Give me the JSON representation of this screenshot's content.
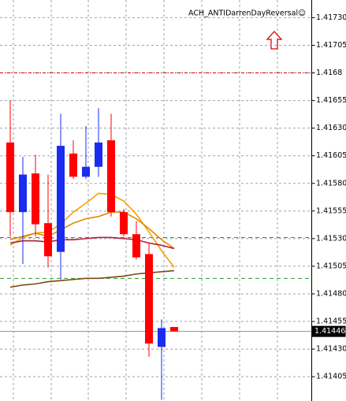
{
  "chart_data": {
    "type": "candlestick",
    "indicator_label": "ACH_ANTIDarrenDayReversal☺",
    "categories": [
      null,
      null,
      null,
      null,
      null,
      null,
      null,
      null,
      null,
      null,
      null,
      null,
      null,
      null
    ],
    "open": [
      1.41617,
      1.41554,
      1.41589,
      1.41544,
      1.41518,
      1.41607,
      1.41586,
      1.41595,
      1.41619,
      1.41554,
      1.41534,
      1.41516,
      1.41432,
      1.4145
    ],
    "high": [
      1.41655,
      1.41604,
      1.41606,
      1.41588,
      1.41643,
      1.41619,
      1.41632,
      1.41648,
      1.41643,
      1.41557,
      1.41546,
      1.41526,
      1.41457,
      1.4145
    ],
    "low": [
      1.41532,
      1.41507,
      1.41532,
      1.41504,
      1.41493,
      1.41584,
      1.41584,
      1.41586,
      1.4155,
      1.41532,
      1.41511,
      1.41423,
      1.41384,
      1.41446
    ],
    "close": [
      1.41554,
      1.41588,
      1.41543,
      1.41514,
      1.41614,
      1.41586,
      1.41595,
      1.41617,
      1.41554,
      1.41534,
      1.41513,
      1.41435,
      1.41449,
      1.41446
    ],
    "up_color": "#1a2cf0",
    "down_color": "#ff0000",
    "series": [
      {
        "color": "#f5a000",
        "values": [
          1.41524,
          1.41531,
          1.41535,
          1.41536,
          1.41543,
          1.41554,
          1.41562,
          1.41571,
          1.4157,
          1.41564,
          1.41552,
          1.41536,
          1.41519,
          1.41504
        ]
      },
      {
        "color": "#e08a00",
        "values": [
          1.41529,
          1.41532,
          1.41535,
          1.41532,
          1.41538,
          1.41544,
          1.41548,
          1.4155,
          1.41554,
          1.41554,
          1.41548,
          1.41539,
          1.41529,
          1.41521
        ]
      },
      {
        "color": "#b0203a",
        "values": [
          1.41526,
          1.41528,
          1.41528,
          1.41527,
          1.41529,
          1.41529,
          1.4153,
          1.41531,
          1.41531,
          1.4153,
          1.41529,
          1.41526,
          1.41524,
          1.41521
        ]
      },
      {
        "color": "#7a4a10",
        "values": [
          1.41486,
          1.41488,
          1.41489,
          1.41491,
          1.41492,
          1.41493,
          1.41494,
          1.41494,
          1.41495,
          1.41496,
          1.41498,
          1.41499,
          1.415,
          1.41501
        ]
      }
    ],
    "levels": [
      {
        "value": 1.4168,
        "color": "#cc0000"
      },
      {
        "value": 1.41531,
        "color": "#2aa02a"
      },
      {
        "value": 1.41494,
        "color": "#2aa02a"
      }
    ],
    "current_price": 1.41446,
    "ylim": [
      1.41383,
      1.41746
    ],
    "yticks": [
      {
        "value": 1.4173,
        "label": "1.41730"
      },
      1.41705,
      1.4168,
      1.41655,
      {
        "value": 1.4163,
        "label": "1.41630"
      },
      1.41605,
      {
        "value": 1.4158,
        "label": "1.41580"
      },
      1.41555,
      {
        "value": 1.4153,
        "label": "1.41530"
      },
      1.41505,
      {
        "value": 1.4148,
        "label": "1.41480"
      },
      1.41455,
      {
        "value": 1.4143,
        "label": "1.41430"
      },
      1.41405
    ],
    "grid": true
  }
}
